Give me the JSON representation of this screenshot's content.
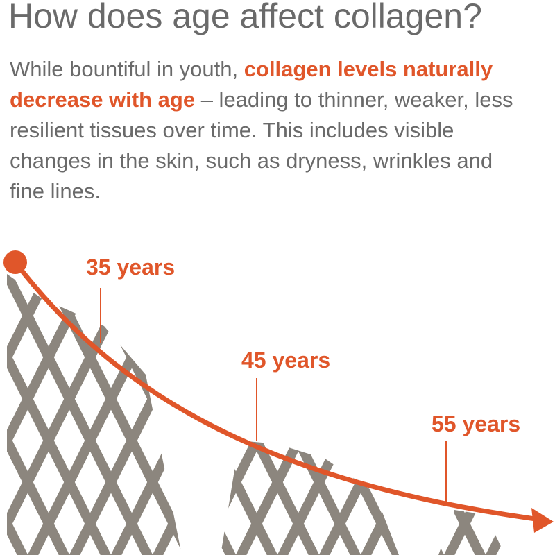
{
  "title": "How does age affect collagen?",
  "intro": {
    "lead": "While bountiful in youth,",
    "highlight": "collagen levels naturally decrease with age",
    "rest": "– leading to thinner, weaker, less resilient tissues over time. This includes visible changes in the skin, such as dryness, wrinkles and fine lines."
  },
  "labels": [
    "35 years",
    "45 years",
    "55 years"
  ]
}
